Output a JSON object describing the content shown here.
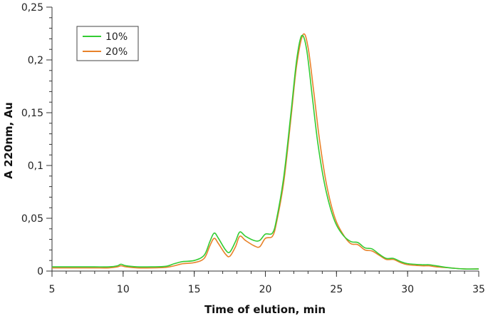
{
  "chart_data": {
    "type": "line",
    "title": "",
    "xlabel": "Time of elution, min",
    "ylabel": "A 220nm, Au",
    "xlim": [
      5,
      35
    ],
    "ylim": [
      0,
      0.25
    ],
    "x_ticks": [
      5,
      10,
      15,
      20,
      25,
      30,
      35
    ],
    "x_tick_labels": [
      "5",
      "10",
      "15",
      "20",
      "25",
      "30",
      "35"
    ],
    "y_ticks": [
      0,
      0.05,
      0.1,
      0.15,
      0.2,
      0.25
    ],
    "y_tick_labels": [
      "0",
      "0,05",
      "0,1",
      "0,15",
      "0,2",
      "0,25"
    ],
    "grid": false,
    "legend_position": "top-left",
    "series": [
      {
        "name": "10%",
        "color": "#33cc33",
        "points": [
          [
            5,
            0.004
          ],
          [
            6,
            0.004
          ],
          [
            7,
            0.004
          ],
          [
            8,
            0.004
          ],
          [
            9,
            0.004
          ],
          [
            9.6,
            0.005
          ],
          [
            9.85,
            0.0065
          ],
          [
            10.2,
            0.005
          ],
          [
            11,
            0.004
          ],
          [
            12,
            0.004
          ],
          [
            13,
            0.0045
          ],
          [
            13.6,
            0.007
          ],
          [
            14.2,
            0.009
          ],
          [
            15,
            0.01
          ],
          [
            15.7,
            0.015
          ],
          [
            16.1,
            0.028
          ],
          [
            16.4,
            0.036
          ],
          [
            16.7,
            0.031
          ],
          [
            17.2,
            0.02
          ],
          [
            17.5,
            0.018
          ],
          [
            17.9,
            0.028
          ],
          [
            18.2,
            0.037
          ],
          [
            18.6,
            0.033
          ],
          [
            19.2,
            0.029
          ],
          [
            19.6,
            0.029
          ],
          [
            20.0,
            0.035
          ],
          [
            20.5,
            0.036
          ],
          [
            20.8,
            0.05
          ],
          [
            21.3,
            0.09
          ],
          [
            21.8,
            0.15
          ],
          [
            22.2,
            0.2
          ],
          [
            22.55,
            0.223
          ],
          [
            22.9,
            0.21
          ],
          [
            23.3,
            0.165
          ],
          [
            23.7,
            0.12
          ],
          [
            24.2,
            0.08
          ],
          [
            24.8,
            0.05
          ],
          [
            25.4,
            0.035
          ],
          [
            26.0,
            0.028
          ],
          [
            26.5,
            0.027
          ],
          [
            27.0,
            0.022
          ],
          [
            27.5,
            0.021
          ],
          [
            28.0,
            0.016
          ],
          [
            28.5,
            0.012
          ],
          [
            29.0,
            0.012
          ],
          [
            29.5,
            0.009
          ],
          [
            30.0,
            0.007
          ],
          [
            31.0,
            0.006
          ],
          [
            31.5,
            0.006
          ],
          [
            32.0,
            0.005
          ],
          [
            33.0,
            0.003
          ],
          [
            34.0,
            0.002
          ],
          [
            35.0,
            0.002
          ]
        ]
      },
      {
        "name": "20%",
        "color": "#e8822a",
        "points": [
          [
            5,
            0.003
          ],
          [
            6,
            0.003
          ],
          [
            7,
            0.003
          ],
          [
            8,
            0.003
          ],
          [
            9,
            0.003
          ],
          [
            9.6,
            0.004
          ],
          [
            9.85,
            0.005
          ],
          [
            10.2,
            0.004
          ],
          [
            11,
            0.003
          ],
          [
            12,
            0.003
          ],
          [
            13,
            0.0035
          ],
          [
            13.6,
            0.005
          ],
          [
            14.2,
            0.007
          ],
          [
            15,
            0.008
          ],
          [
            15.7,
            0.012
          ],
          [
            16.1,
            0.024
          ],
          [
            16.4,
            0.031
          ],
          [
            16.7,
            0.026
          ],
          [
            17.2,
            0.016
          ],
          [
            17.5,
            0.014
          ],
          [
            17.9,
            0.023
          ],
          [
            18.2,
            0.033
          ],
          [
            18.6,
            0.029
          ],
          [
            19.2,
            0.024
          ],
          [
            19.6,
            0.023
          ],
          [
            20.0,
            0.031
          ],
          [
            20.5,
            0.033
          ],
          [
            20.8,
            0.047
          ],
          [
            21.3,
            0.085
          ],
          [
            21.8,
            0.145
          ],
          [
            22.2,
            0.195
          ],
          [
            22.65,
            0.224
          ],
          [
            23.0,
            0.212
          ],
          [
            23.4,
            0.17
          ],
          [
            23.8,
            0.125
          ],
          [
            24.3,
            0.082
          ],
          [
            24.9,
            0.05
          ],
          [
            25.5,
            0.034
          ],
          [
            26.0,
            0.026
          ],
          [
            26.5,
            0.025
          ],
          [
            27.0,
            0.02
          ],
          [
            27.5,
            0.019
          ],
          [
            28.0,
            0.015
          ],
          [
            28.5,
            0.011
          ],
          [
            29.0,
            0.011
          ],
          [
            29.5,
            0.008
          ],
          [
            30.0,
            0.006
          ],
          [
            31.0,
            0.005
          ],
          [
            31.5,
            0.005
          ],
          [
            32.0,
            0.004
          ],
          [
            33.0,
            0.003
          ],
          [
            34.0,
            0.002
          ],
          [
            35.0,
            0.002
          ]
        ]
      }
    ]
  }
}
